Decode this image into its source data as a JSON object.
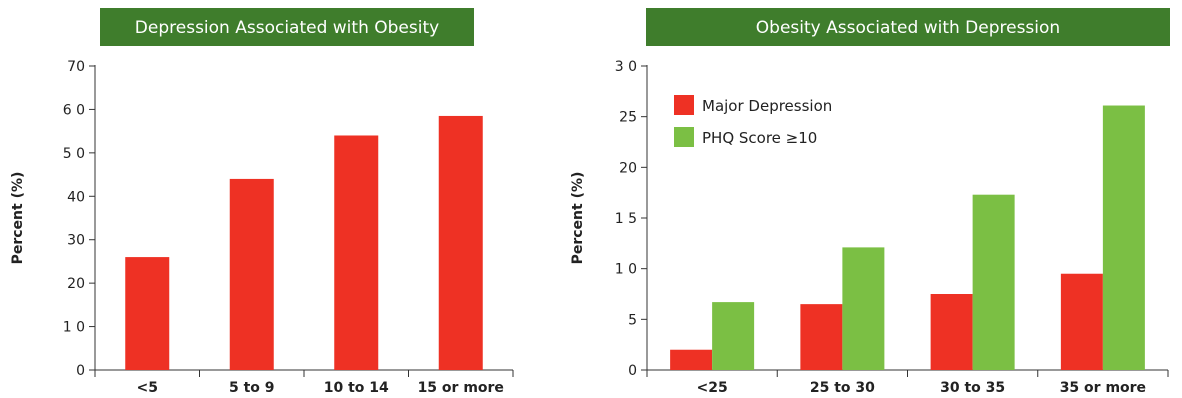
{
  "chart_data": [
    {
      "type": "bar",
      "title": "Depression Associated with Obesity",
      "ylabel": "Percent (%)",
      "xlabel": "",
      "categories": [
        "<5",
        "5 to 9",
        "10 to 14",
        "15 or more"
      ],
      "y_tick_labels": [
        "0",
        "1 0",
        "20",
        "30",
        "40",
        "5 0",
        "6 0",
        "70"
      ],
      "ylim": [
        0,
        70
      ],
      "series": [
        {
          "values": [
            26,
            44,
            54,
            58.5
          ],
          "color": "#ee3124"
        }
      ],
      "grid": false
    },
    {
      "type": "bar",
      "title": "Obesity Associated with Depression",
      "ylabel": "Percent (%)",
      "xlabel": "",
      "categories": [
        "<25",
        "25 to 30",
        "30 to 35",
        "35 or more"
      ],
      "y_tick_labels": [
        "0",
        "5",
        "1 0",
        "1 5",
        "20",
        "25",
        "3 0"
      ],
      "ylim": [
        0,
        30
      ],
      "legend_position": "top-left",
      "series": [
        {
          "name": "Major Depression",
          "values": [
            2,
            6.5,
            7.5,
            9.5
          ],
          "color": "#ee3124"
        },
        {
          "name": "PHQ Score ≥10",
          "values": [
            6.7,
            12.1,
            17.3,
            26.1
          ],
          "color": "#7bbf44"
        }
      ],
      "grid": false
    }
  ]
}
